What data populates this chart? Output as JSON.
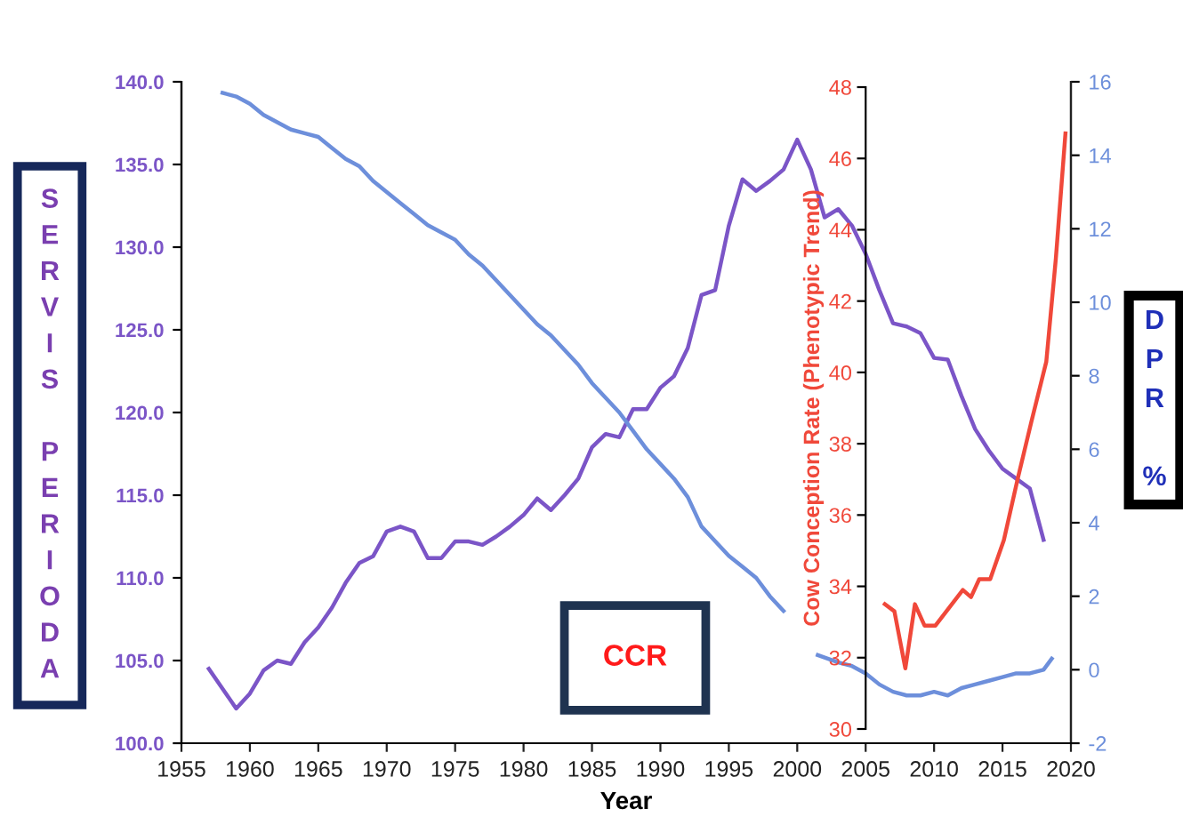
{
  "chart_data": {
    "type": "line",
    "xlabel": "Year",
    "ylabel": "SERVIS PERIODA",
    "y2label": "DPR %",
    "y3label": "Cow Conception Rate (Phenotypic Trend)",
    "annotations": [
      "CCR"
    ],
    "xlim": [
      1955,
      2020
    ],
    "xticks": [
      1955,
      1960,
      1965,
      1970,
      1975,
      1980,
      1985,
      1990,
      1995,
      2000,
      2005,
      2010,
      2015,
      2020
    ],
    "ylim": [
      100,
      140
    ],
    "yticks": [
      {
        "value": 100,
        "label": "100.0"
      },
      {
        "value": 105,
        "label": "105.0"
      },
      {
        "value": 110,
        "label": "110.0"
      },
      {
        "value": 115,
        "label": "115.0"
      },
      {
        "value": 120,
        "label": "120.0"
      },
      {
        "value": 125,
        "label": "125.0"
      },
      {
        "value": 130,
        "label": "130.0"
      },
      {
        "value": 135,
        "label": "135.0"
      },
      {
        "value": 140,
        "label": "140.0"
      }
    ],
    "y2lim": [
      -2,
      16
    ],
    "y2ticks": [
      -2,
      0,
      2,
      4,
      6,
      8,
      10,
      12,
      14,
      16
    ],
    "y3lim": [
      30,
      48
    ],
    "y3ticks": [
      30,
      32,
      34,
      36,
      38,
      40,
      42,
      44,
      46,
      48
    ],
    "grid": false,
    "legend": false,
    "marker": "none",
    "line_style": "solid",
    "series": [
      {
        "color": "#7b55c7",
        "axis": "y",
        "x": [
          1957,
          1959,
          1960,
          1961,
          1962,
          1963,
          1964,
          1965,
          1966,
          1967,
          1968,
          1969,
          1970,
          1971,
          1972,
          1973,
          1974,
          1975,
          1976,
          1977,
          1978,
          1979,
          1980,
          1981,
          1982,
          1983,
          1984,
          1985,
          1986,
          1987,
          1988,
          1989,
          1990,
          1991,
          1992,
          1993,
          1994,
          1995,
          1996,
          1997,
          1998,
          1999,
          2000,
          2001,
          2002,
          2003,
          2004,
          2005,
          2006,
          2007,
          2008,
          2009,
          2010,
          2011,
          2012,
          2013,
          2014,
          2015,
          2016,
          2017,
          2018
        ],
        "values": [
          104.5,
          102.1,
          103.0,
          104.4,
          105.0,
          104.8,
          106.1,
          107.0,
          108.2,
          109.7,
          110.9,
          111.3,
          112.8,
          113.1,
          112.8,
          111.2,
          111.2,
          112.2,
          112.2,
          112.0,
          112.5,
          113.1,
          113.8,
          114.8,
          114.1,
          115.0,
          116.0,
          117.9,
          118.7,
          118.5,
          120.2,
          120.2,
          121.5,
          122.2,
          123.9,
          127.1,
          127.4,
          131.3,
          134.1,
          133.4,
          134.0,
          134.7,
          136.5,
          134.7,
          131.8,
          132.3,
          131.3,
          129.6,
          127.4,
          125.4,
          125.2,
          124.8,
          123.3,
          123.2,
          121.0,
          119.0,
          117.7,
          116.6,
          116.0,
          115.4,
          112.3
        ]
      },
      {
        "color": "#6d8fdb",
        "axis": "y2",
        "x": [
          1958,
          1959,
          1960,
          1961,
          1962,
          1963,
          1964,
          1965,
          1966,
          1967,
          1968,
          1969,
          1970,
          1971,
          1972,
          1973,
          1974,
          1975,
          1976,
          1977,
          1978,
          1979,
          1980,
          1981,
          1982,
          1983,
          1984,
          1985,
          1986,
          1987,
          1988,
          1989,
          1990,
          1991,
          1992,
          1993,
          1994,
          1995,
          1996,
          1997,
          1998,
          1999,
          2000.5,
          2001.5,
          2003,
          2004,
          2005,
          2006,
          2007,
          2008,
          2009,
          2010,
          2011,
          2012,
          2013,
          2014,
          2015,
          2016,
          2017,
          2018,
          2018.6
        ],
        "values": [
          15.7,
          15.6,
          15.4,
          15.1,
          14.9,
          14.7,
          14.6,
          14.5,
          14.2,
          13.9,
          13.7,
          13.3,
          13.0,
          12.7,
          12.4,
          12.1,
          11.9,
          11.7,
          11.3,
          11.0,
          10.6,
          10.2,
          9.8,
          9.4,
          9.1,
          8.7,
          8.3,
          7.8,
          7.4,
          7.0,
          6.5,
          6.0,
          5.6,
          5.2,
          4.7,
          3.9,
          3.5,
          3.1,
          2.8,
          2.5,
          2.0,
          1.6,
          null,
          0.4,
          0.2,
          0.1,
          -0.1,
          -0.4,
          -0.6,
          -0.7,
          -0.7,
          -0.6,
          -0.7,
          -0.5,
          -0.4,
          -0.3,
          -0.2,
          -0.1,
          -0.1,
          0.0,
          0.3
        ]
      },
      {
        "color": "#f0483a",
        "axis": "y3",
        "x": [
          2006.4,
          2007.1,
          2007.9,
          2008.6,
          2009.3,
          2010.1,
          2011.1,
          2012.1,
          2012.7,
          2013.3,
          2014.1,
          2015.1,
          2016.1,
          2017.1,
          2018.2,
          2018.9,
          2019.6
        ],
        "values": [
          33.5,
          33.3,
          31.7,
          33.5,
          32.9,
          32.9,
          33.4,
          33.9,
          33.7,
          34.2,
          34.2,
          35.3,
          37.0,
          38.6,
          40.3,
          43.2,
          46.7
        ]
      }
    ]
  }
}
